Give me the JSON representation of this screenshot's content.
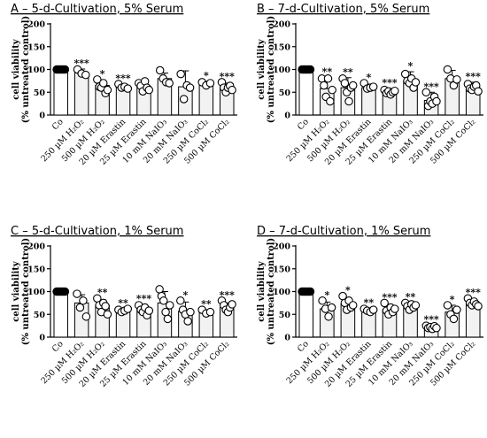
{
  "chart_data": [
    {
      "type": "bar",
      "title": "A – 5-d-Cultivation, 5% Serum",
      "ylabel": "cell viability",
      "ylabel2": "(% untreated control)",
      "ylim": [
        0,
        200
      ],
      "yticks": [
        0,
        50,
        100,
        150,
        200
      ],
      "categories": [
        "Co",
        "250 µM H₂O₂",
        "500 µM H₂O₂",
        "20 µM Erastin",
        "25 µM Erastin",
        "10 mM NaIO₃",
        "20 mM NaIO₃",
        "250 µM CoCl₂",
        "500 µM CoCl₂"
      ],
      "values": [
        100,
        93,
        65,
        62,
        63,
        80,
        62,
        68,
        60
      ],
      "errors": [
        2,
        8,
        12,
        4,
        10,
        12,
        35,
        6,
        10
      ],
      "points": [
        [
          100,
          100,
          100,
          100,
          100,
          100
        ],
        [
          100,
          91,
          88
        ],
        [
          78,
          62,
          60,
          70,
          48,
          55
        ],
        [
          68,
          60,
          62,
          58
        ],
        [
          70,
          64,
          52,
          74,
          60,
          55
        ],
        [
          98,
          80,
          72,
          70
        ],
        [
          90,
          35,
          65,
          60
        ],
        [
          72,
          65,
          70
        ],
        [
          72,
          60,
          50,
          60,
          64,
          55
        ]
      ],
      "significance": [
        "",
        "***",
        "*",
        "***",
        "",
        "",
        "",
        "*",
        "***"
      ]
    },
    {
      "type": "bar",
      "title": "B – 7-d-Cultivation, 5% Serum",
      "ylabel": "cell viability",
      "ylabel2": "(% untreated control)",
      "ylim": [
        0,
        200
      ],
      "yticks": [
        0,
        50,
        100,
        150,
        200
      ],
      "categories": [
        "Co",
        "250 µM H₂O₂",
        "500 µM H₂O₂",
        "20 µM Erastin",
        "25 µM Erastin",
        "10 mM NaIO₃",
        "20 mM NaIO₃",
        "250 µM CoCl₂",
        "500 µM CoCl₂"
      ],
      "values": [
        100,
        58,
        60,
        60,
        50,
        75,
        32,
        80,
        60
      ],
      "errors": [
        2,
        25,
        22,
        8,
        8,
        20,
        18,
        18,
        12
      ],
      "points": [
        [
          100,
          100,
          100,
          100,
          100,
          100
        ],
        [
          80,
          65,
          40,
          80,
          30,
          55
        ],
        [
          80,
          70,
          50,
          30,
          60,
          65
        ],
        [
          70,
          58,
          60,
          62
        ],
        [
          55,
          48,
          52,
          45,
          50,
          53
        ],
        [
          90,
          75,
          70,
          80,
          60,
          72
        ],
        [
          50,
          20,
          30,
          25,
          40,
          30
        ],
        [
          100,
          80,
          65,
          78
        ],
        [
          68,
          58,
          55,
          62,
          65,
          52
        ]
      ],
      "significance": [
        "",
        "**",
        "**",
        "*",
        "***",
        "*",
        "***",
        "",
        "***"
      ]
    },
    {
      "type": "bar",
      "title": "C – 5-d-Cultivation, 1% Serum",
      "ylabel": "cell viability",
      "ylabel2": "(% untreated control)",
      "ylim": [
        0,
        200
      ],
      "yticks": [
        0,
        50,
        100,
        150,
        200
      ],
      "categories": [
        "Co",
        "250 µM H₂O₂",
        "500 µM H₂O₂",
        "20 µM Erastin",
        "25 µM Erastin",
        "10 mM NaIO₃",
        "20 mM NaIO₃",
        "250 µM CoCl₂",
        "500 µM CoCl₂"
      ],
      "values": [
        100,
        75,
        70,
        58,
        62,
        75,
        57,
        55,
        65
      ],
      "errors": [
        2,
        18,
        12,
        4,
        10,
        25,
        20,
        5,
        10
      ],
      "points": [
        [
          100,
          100,
          100,
          100,
          100,
          100
        ],
        [
          95,
          65,
          80,
          45
        ],
        [
          85,
          70,
          55,
          75,
          68,
          50
        ],
        [
          60,
          55,
          58,
          62
        ],
        [
          70,
          60,
          55,
          65,
          48,
          58
        ],
        [
          105,
          90,
          80,
          55,
          40,
          70
        ],
        [
          80,
          60,
          50,
          35,
          55
        ],
        [
          60,
          52,
          55
        ],
        [
          80,
          70,
          60,
          55,
          65,
          72
        ]
      ],
      "significance": [
        "",
        "",
        "**",
        "**",
        "***",
        "",
        "*",
        "**",
        "***"
      ]
    },
    {
      "type": "bar",
      "title": "D – 7-d-Cultivation, 1% Serum",
      "ylabel": "cell viability",
      "ylabel2": "(% untreated control)",
      "ylim": [
        0,
        200
      ],
      "yticks": [
        0,
        50,
        100,
        150,
        200
      ],
      "categories": [
        "Co",
        "250 µM H₂O₂",
        "500 µM H₂O₂",
        "20 µM Erastin",
        "25 µM Erastin",
        "10 mM NaIO₃",
        "20 mM NaIO₃",
        "250 µM CoCl₂",
        "500 µM CoCl₂"
      ],
      "values": [
        100,
        62,
        72,
        58,
        60,
        68,
        22,
        55,
        75
      ],
      "errors": [
        2,
        15,
        15,
        5,
        12,
        8,
        4,
        15,
        8
      ],
      "points": [
        [
          100,
          100,
          100,
          100,
          100,
          100
        ],
        [
          80,
          62,
          45,
          65
        ],
        [
          90,
          75,
          60,
          80,
          65,
          70
        ],
        [
          62,
          58,
          55,
          60
        ],
        [
          75,
          58,
          50,
          65,
          55,
          62
        ],
        [
          75,
          68,
          60,
          72,
          65,
          70
        ],
        [
          25,
          20,
          22,
          18,
          24,
          20
        ],
        [
          70,
          50,
          40,
          60
        ],
        [
          85,
          75,
          70,
          78,
          72,
          68
        ]
      ],
      "significance": [
        "",
        "*",
        "*",
        "**",
        "***",
        "**",
        "***",
        "*",
        "***"
      ]
    }
  ]
}
